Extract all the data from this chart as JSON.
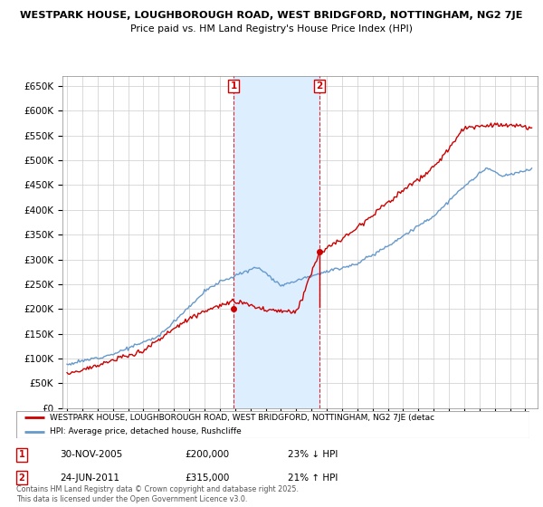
{
  "title1": "WESTPARK HOUSE, LOUGHBOROUGH ROAD, WEST BRIDGFORD, NOTTINGHAM, NG2 7JE",
  "title2": "Price paid vs. HM Land Registry's House Price Index (HPI)",
  "legend_line1": "WESTPARK HOUSE, LOUGHBOROUGH ROAD, WEST BRIDGFORD, NOTTINGHAM, NG2 7JE (detac",
  "legend_line2": "HPI: Average price, detached house, Rushcliffe",
  "footer": "Contains HM Land Registry data © Crown copyright and database right 2025.\nThis data is licensed under the Open Government Licence v3.0.",
  "transactions": [
    {
      "label": "1",
      "date": "30-NOV-2005",
      "price": 200000,
      "pct": "23% ↓ HPI",
      "year": 2005.92
    },
    {
      "label": "2",
      "date": "24-JUN-2011",
      "price": 315000,
      "pct": "21% ↑ HPI",
      "year": 2011.5
    }
  ],
  "red_color": "#cc0000",
  "blue_color": "#6699cc",
  "shade_color": "#ddeeff",
  "ylim": [
    0,
    670000
  ],
  "yticks": [
    0,
    50000,
    100000,
    150000,
    200000,
    250000,
    300000,
    350000,
    400000,
    450000,
    500000,
    550000,
    600000,
    650000
  ],
  "xlim_start": 1994.7,
  "xlim_end": 2025.8
}
